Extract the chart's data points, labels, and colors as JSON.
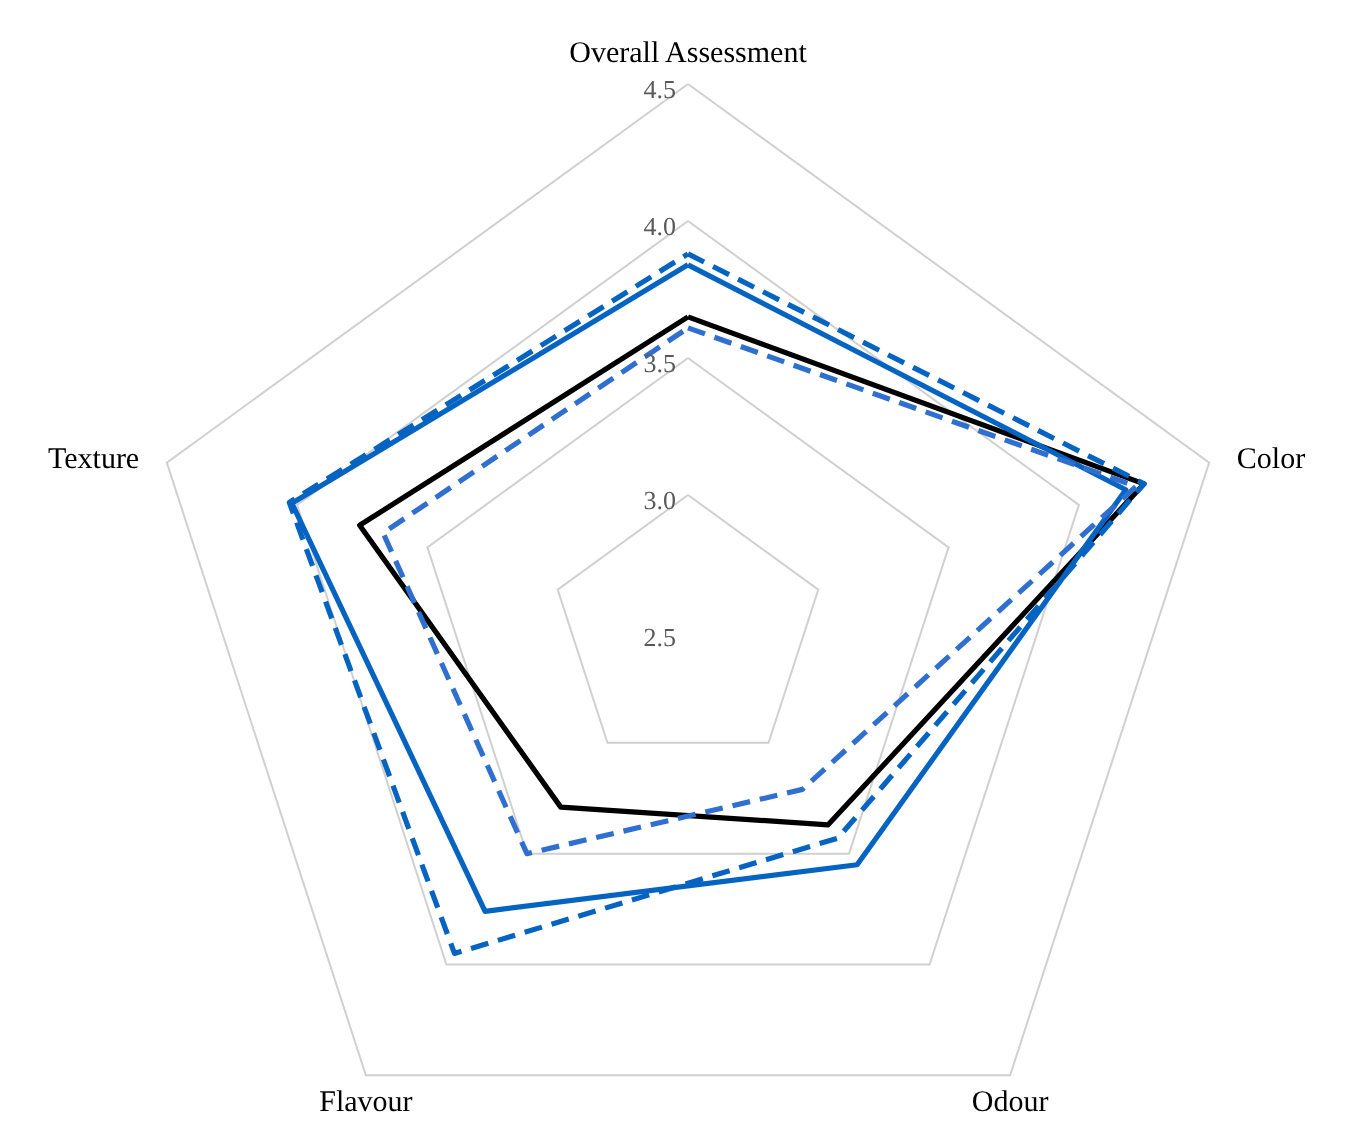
{
  "chart_data": {
    "type": "radar",
    "categories": [
      "Overall Assessment",
      "Color",
      "Odour",
      "Flavour",
      "Texture"
    ],
    "ylim": [
      2.5,
      4.5
    ],
    "yticks": [
      2.5,
      {
        "value": 3,
        "label": "3.0"
      },
      3.5,
      {
        "value": 4,
        "label": "4.0"
      },
      4.5
    ],
    "grid": true,
    "series": [
      {
        "color": "#000000",
        "line_style": "solid",
        "values": [
          3.65,
          4.25,
          3.37,
          3.29,
          3.76
        ]
      },
      {
        "color": "#0563c1",
        "line_style": "solid",
        "values": [
          3.84,
          4.18,
          3.55,
          3.76,
          4.02
        ]
      },
      {
        "color": "#0563c1",
        "line_style": "dashed",
        "values": [
          3.88,
          4.25,
          3.43,
          3.95,
          4.03
        ]
      },
      {
        "color": "#2f6fcf",
        "line_style": "dashed",
        "values": [
          3.61,
          4.22,
          3.21,
          3.5,
          3.67
        ]
      }
    ]
  }
}
